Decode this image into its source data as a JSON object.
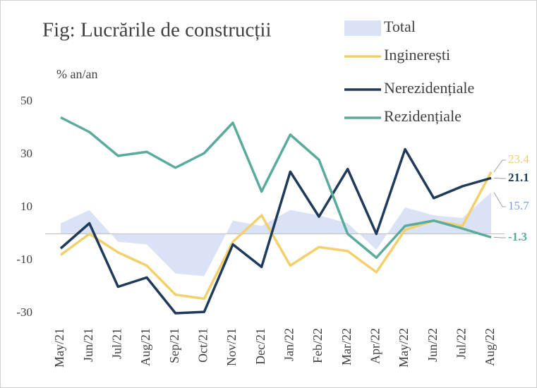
{
  "chart_data": {
    "type": "line",
    "title": "Fig: Lucrările de construcții",
    "y_label": "% an/an",
    "categories": [
      "May/21",
      "Jun/21",
      "Jul/21",
      "Aug/21",
      "Sep/21",
      "Oct/21",
      "Nov/21",
      "Dec/21",
      "Jan/22",
      "Feb/22",
      "Mar/22",
      "Apr/22",
      "May/22",
      "Jun/22",
      "Jul/22",
      "Aug/22"
    ],
    "series": [
      {
        "name": "Total",
        "type": "area",
        "color": "#dae3f5",
        "label_color": "#7f9fd6",
        "values": [
          4,
          9,
          -3,
          -4,
          -15,
          -16,
          5,
          3,
          9,
          7,
          4,
          -6,
          10,
          7,
          6,
          15.7
        ]
      },
      {
        "name": "Inginerești",
        "type": "line",
        "color": "#f3d06b",
        "label_color": "#f3d06b",
        "values": [
          -8,
          0,
          -7,
          -12,
          -23,
          -24.5,
          -3,
          7,
          -12,
          -5,
          -6.5,
          -14.5,
          1.5,
          5,
          3,
          23.4
        ]
      },
      {
        "name": "Nerezidențiale",
        "type": "line",
        "color": "#1f3a5a",
        "label_color": "#1f3a5a",
        "values": [
          -5.5,
          4,
          -20,
          -16.5,
          -30,
          -29.5,
          -4,
          -12.5,
          23.5,
          6.5,
          24.5,
          0,
          32,
          13.5,
          18,
          21.1
        ]
      },
      {
        "name": "Rezidențiale",
        "type": "line",
        "color": "#5aab9b",
        "label_color": "#5aab9b",
        "values": [
          44,
          38.5,
          29.5,
          31,
          25,
          30.5,
          42,
          16,
          37.5,
          28,
          0,
          -9,
          3,
          5,
          2,
          -1.3
        ]
      }
    ],
    "ylim": [
      -33,
      55
    ],
    "yticks": [
      50,
      30,
      10,
      -10,
      -30
    ]
  }
}
